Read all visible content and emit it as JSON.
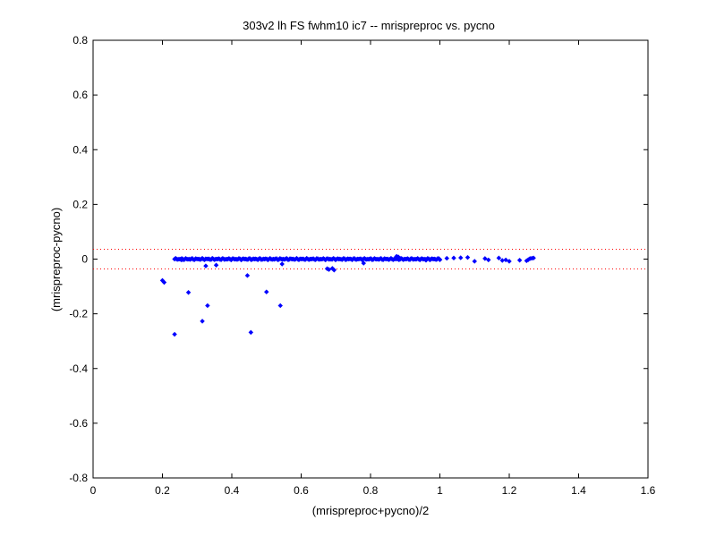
{
  "chart_data": {
    "type": "scatter",
    "title": "303v2 lh FS fwhm10 ic7 -- mrispreproc vs. pycno",
    "xlabel": "(mrispreproc+pycno)/2",
    "ylabel": "(mrispreproc-pycno)",
    "xlim": [
      0,
      1.6
    ],
    "ylim": [
      -0.8,
      0.8
    ],
    "xticks": [
      0,
      0.2,
      0.4,
      0.6,
      0.8,
      1,
      1.2,
      1.4,
      1.6
    ],
    "xtick_labels": [
      "0",
      "0.2",
      "0.4",
      "0.6",
      "0.8",
      "1",
      "1.2",
      "1.4",
      "1.6"
    ],
    "yticks": [
      -0.8,
      -0.6,
      -0.4,
      -0.2,
      0,
      0.2,
      0.4,
      0.6,
      0.8
    ],
    "ytick_labels": [
      "-0.8",
      "-0.6",
      "-0.4",
      "-0.2",
      "0",
      "0.2",
      "0.4",
      "0.6",
      "0.8"
    ],
    "grid": false,
    "marker_color": "#0000ff",
    "reference_line_color": "#ff0000",
    "reference_lines_y": [
      0.036,
      -0.036
    ],
    "cluster": {
      "x_range": [
        0.235,
        1.0
      ],
      "y_mean": 0,
      "y_spread": 0.003,
      "count": 240
    },
    "points": [
      [
        0.2,
        -0.078
      ],
      [
        0.205,
        -0.085
      ],
      [
        0.235,
        -0.275
      ],
      [
        0.255,
        -0.003
      ],
      [
        0.275,
        -0.122
      ],
      [
        0.315,
        -0.227
      ],
      [
        0.325,
        -0.025
      ],
      [
        0.33,
        -0.17
      ],
      [
        0.355,
        -0.022
      ],
      [
        0.445,
        -0.06
      ],
      [
        0.455,
        -0.268
      ],
      [
        0.5,
        -0.12
      ],
      [
        0.54,
        -0.17
      ],
      [
        0.545,
        -0.018
      ],
      [
        0.675,
        -0.035
      ],
      [
        0.68,
        -0.038
      ],
      [
        0.69,
        -0.034
      ],
      [
        0.695,
        -0.04
      ],
      [
        0.78,
        -0.015
      ],
      [
        0.875,
        0.01
      ],
      [
        0.88,
        0.008
      ],
      [
        0.96,
        -0.004
      ],
      [
        1.0,
        -0.002
      ],
      [
        1.02,
        0.003
      ],
      [
        1.04,
        0.004
      ],
      [
        1.06,
        0.005
      ],
      [
        1.08,
        0.006
      ],
      [
        1.1,
        -0.008
      ],
      [
        1.13,
        0.002
      ],
      [
        1.14,
        -0.003
      ],
      [
        1.17,
        0.004
      ],
      [
        1.18,
        -0.005
      ],
      [
        1.19,
        -0.003
      ],
      [
        1.2,
        -0.008
      ],
      [
        1.23,
        -0.004
      ],
      [
        1.25,
        -0.006
      ],
      [
        1.255,
        -0.002
      ],
      [
        1.26,
        0.002
      ],
      [
        1.265,
        0.003
      ],
      [
        1.27,
        0.004
      ]
    ]
  }
}
